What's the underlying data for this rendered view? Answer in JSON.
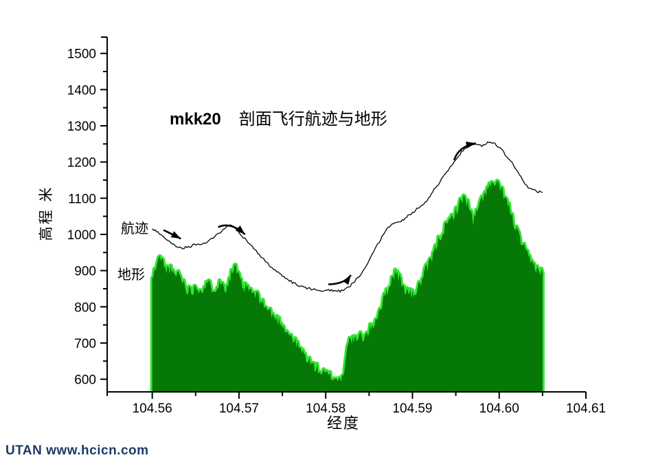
{
  "page": {
    "background": "#ffffff"
  },
  "watermark": {
    "text": "UTAN  www.hcicn.com",
    "color": "#1b3a66"
  },
  "chart_data": {
    "type": "area+line",
    "title_bold": "mkk20",
    "title": "剖面飞行航迹与地形",
    "xlabel": "经度",
    "ylabel": "高程 米",
    "xlim": [
      104.5548,
      104.61
    ],
    "ylim": [
      565,
      1545
    ],
    "grid": false,
    "x_major_ticks": [
      104.56,
      104.57,
      104.58,
      104.59,
      104.6,
      104.61
    ],
    "x_tick_labels": [
      "104.56",
      "104.57",
      "104.58",
      "104.59",
      "104.60",
      "104.61"
    ],
    "x_minor_ticks": [
      104.565,
      104.575,
      104.585,
      104.595,
      104.605
    ],
    "y_major_ticks": [
      600,
      700,
      800,
      900,
      1000,
      1100,
      1200,
      1300,
      1400,
      1500
    ],
    "y_minor_ticks": [
      650,
      750,
      850,
      950,
      1050,
      1150,
      1250,
      1350,
      1450
    ],
    "series": [
      {
        "name": "地形",
        "type": "area",
        "fill_color": "#067806",
        "edge_color": "#33e533",
        "baseline": 565,
        "x0": 104.56,
        "dx": 0.0005,
        "roughness_m": 15,
        "seed": 11,
        "alts": [
          875,
          915,
          940,
          903,
          906,
          884,
          895,
          872,
          848,
          842,
          855,
          848,
          852,
          862,
          850,
          857,
          865,
          852,
          882,
          912,
          878,
          848,
          852,
          838,
          830,
          818,
          800,
          788,
          772,
          762,
          752,
          733,
          718,
          700,
          684,
          668,
          652,
          638,
          628,
          618,
          613,
          608,
          603,
          600,
          604,
          700,
          710,
          704,
          718,
          714,
          733,
          750,
          778,
          808,
          838,
          868,
          895,
          878,
          850,
          840,
          831,
          845,
          868,
          898,
          920,
          948,
          983,
          1008,
          1025,
          1045,
          1062,
          1085,
          1105,
          1075,
          1035,
          1065,
          1095,
          1120,
          1132,
          1140,
          1130,
          1112,
          1082,
          1045,
          1010,
          980,
          952,
          930,
          913,
          902,
          893
        ]
      },
      {
        "name": "航迹",
        "type": "line",
        "line_color": "#000000",
        "x0": 104.56,
        "dx": 0.0005,
        "roughness_m": 3,
        "seed": 5,
        "alts": [
          1015,
          1008,
          1000,
          990,
          980,
          972,
          966,
          963,
          964,
          968,
          973,
          970,
          975,
          982,
          990,
          1000,
          1010,
          1020,
          1025,
          1018,
          1005,
          992,
          980,
          966,
          953,
          940,
          927,
          915,
          904,
          894,
          885,
          877,
          870,
          863,
          858,
          854,
          851,
          848,
          847,
          846,
          845,
          845,
          844,
          844,
          844,
          852,
          862,
          875,
          890,
          907,
          926,
          950,
          972,
          995,
          1015,
          1026,
          1030,
          1035,
          1042,
          1052,
          1060,
          1070,
          1080,
          1088,
          1105,
          1125,
          1140,
          1158,
          1172,
          1190,
          1205,
          1222,
          1238,
          1246,
          1250,
          1247,
          1244,
          1252,
          1256,
          1250,
          1240,
          1228,
          1212,
          1196,
          1178,
          1158,
          1138,
          1128,
          1122,
          1118,
          1116
        ]
      }
    ],
    "annotations": {
      "path_label": "航迹",
      "terrain_label": "地形",
      "arrows": [
        {
          "tail": [
            104.5613,
            1012
          ],
          "ctrl": [
            104.5622,
            1002
          ],
          "tip": [
            104.5633,
            988
          ]
        },
        {
          "tail": [
            104.5676,
            1020
          ],
          "ctrl": [
            104.569,
            1036
          ],
          "tip": [
            104.5707,
            1000
          ]
        },
        {
          "tail": [
            104.5803,
            862
          ],
          "ctrl": [
            104.5822,
            863
          ],
          "tip": [
            104.5829,
            888
          ]
        },
        {
          "tail": [
            104.5948,
            1205
          ],
          "ctrl": [
            104.5953,
            1243
          ],
          "tip": [
            104.5973,
            1252
          ]
        }
      ]
    }
  }
}
